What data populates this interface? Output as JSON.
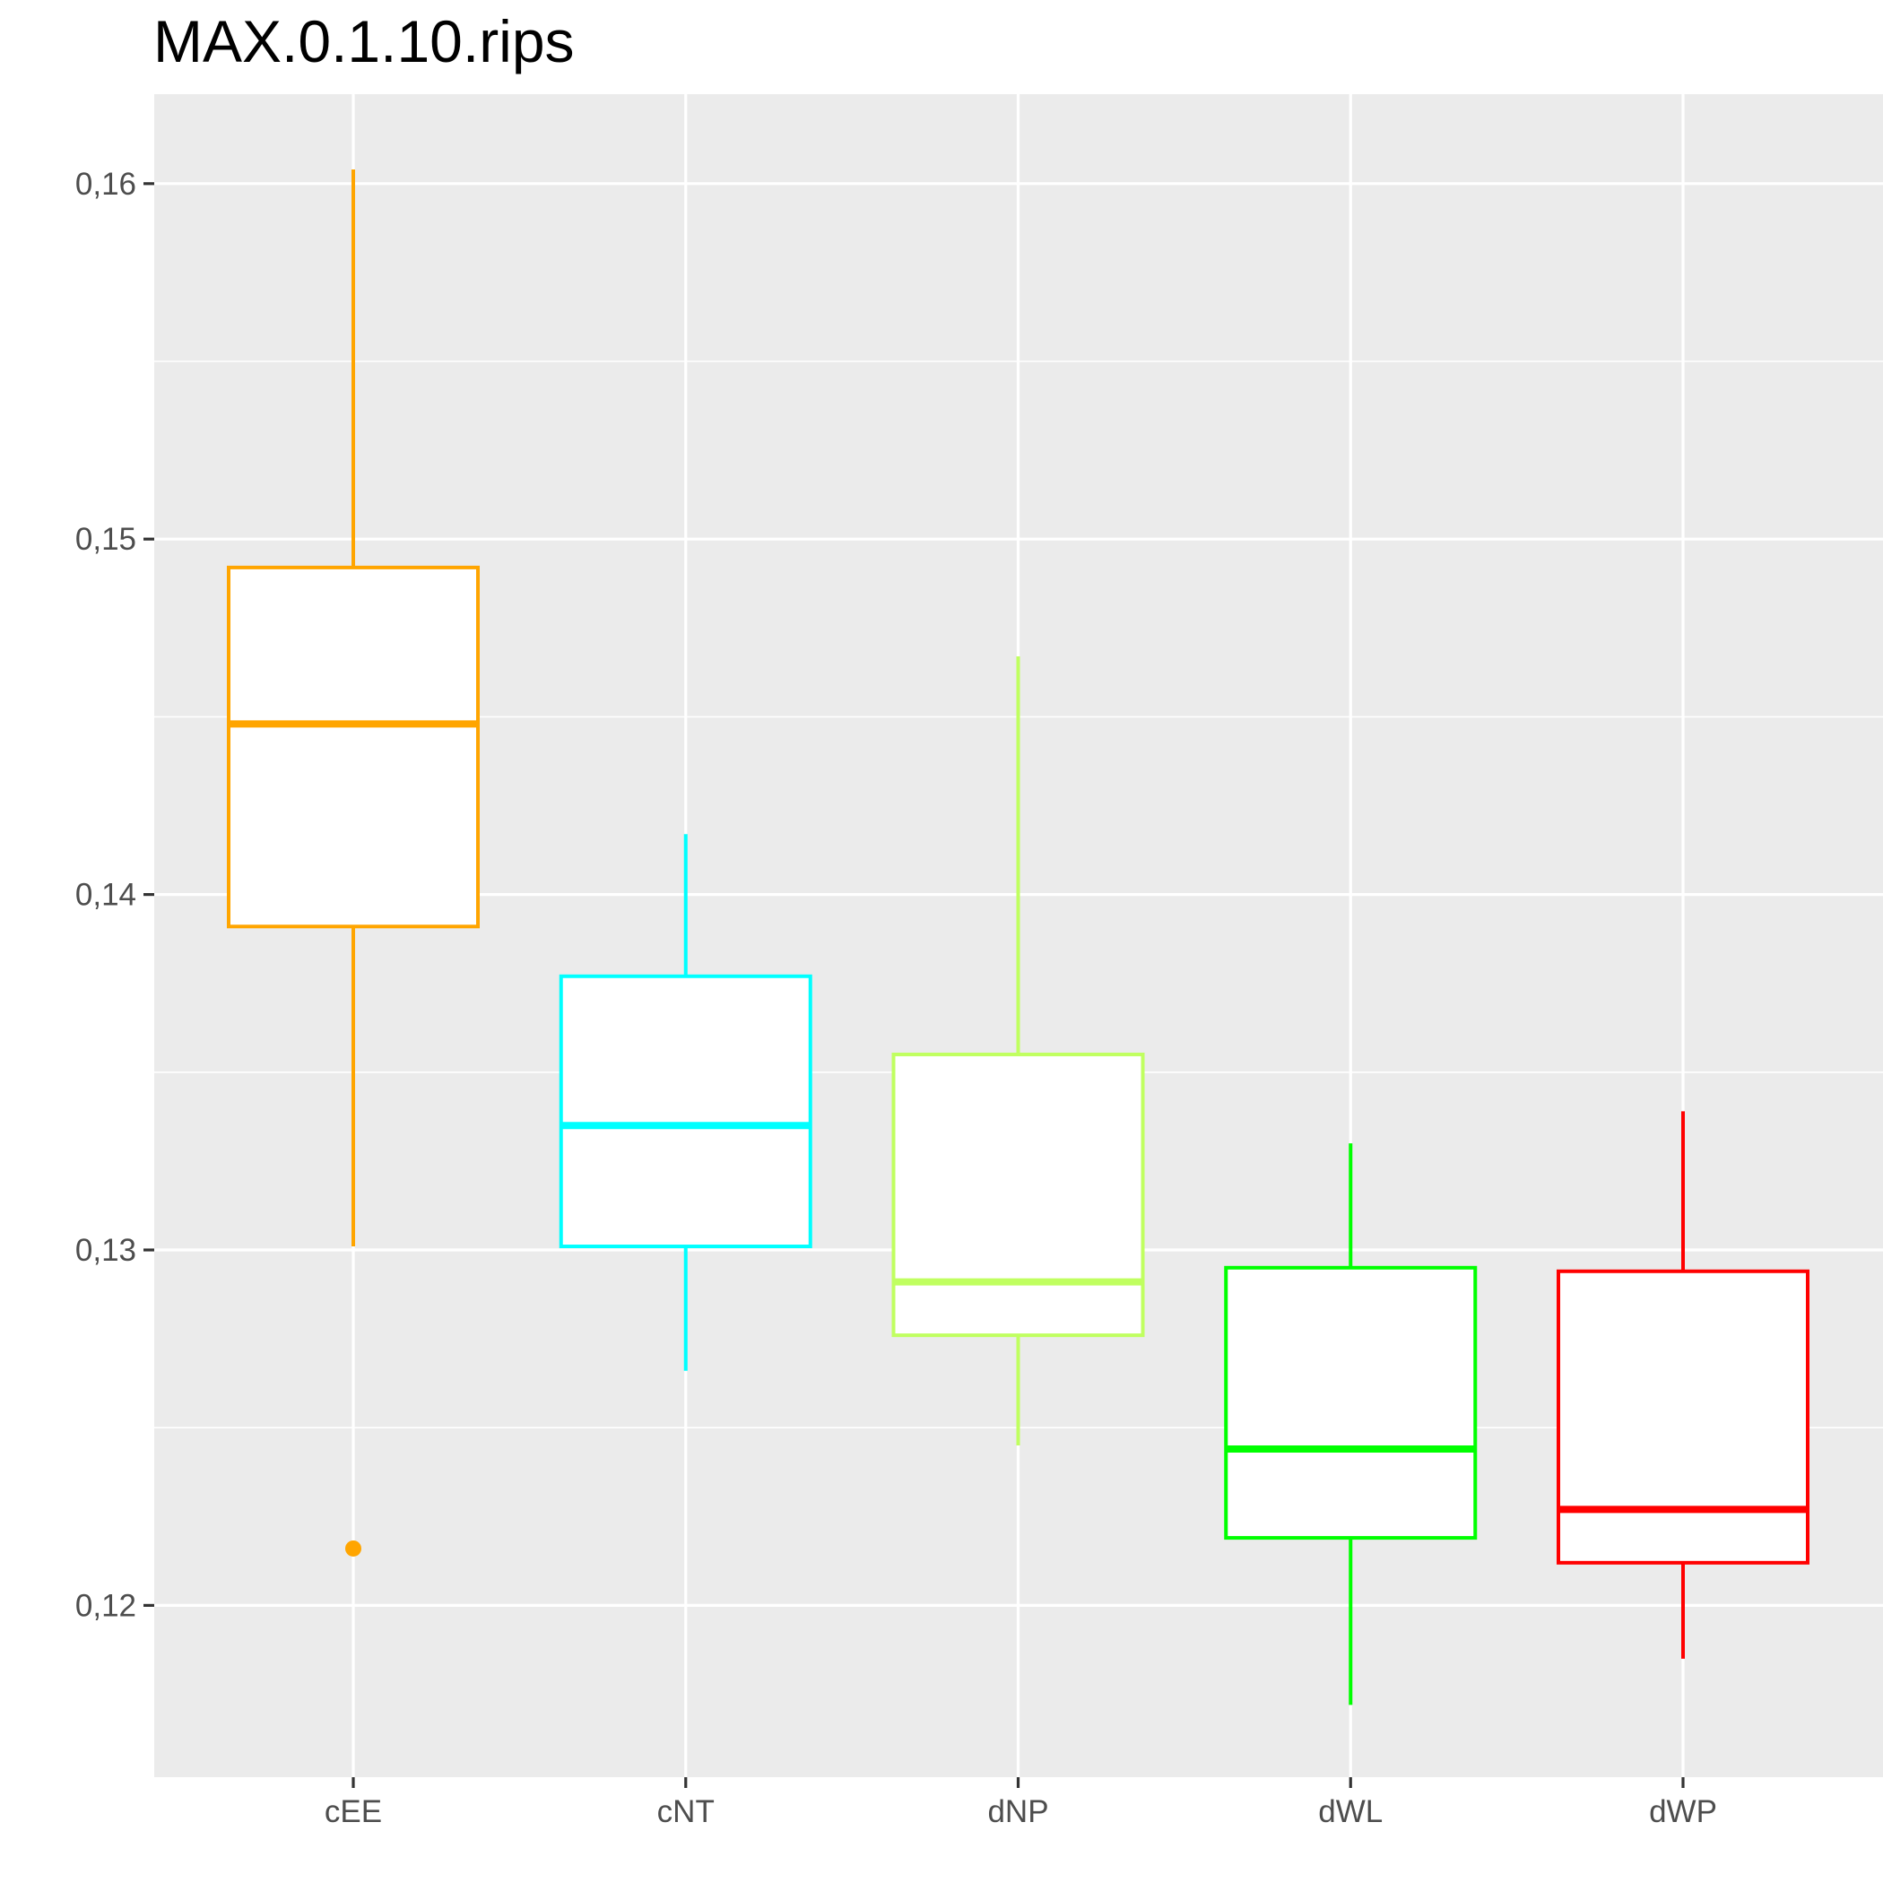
{
  "chart_data": {
    "type": "boxplot",
    "title": "MAX.0.1.10.rips",
    "xlabel": "",
    "ylabel": "",
    "ylim": [
      0.1155,
      0.1625
    ],
    "grid": true,
    "legend": "none",
    "categories": [
      "cEE",
      "cNT",
      "dNP",
      "dWL",
      "dWP"
    ],
    "y_ticks": [
      0.12,
      0.13,
      0.14,
      0.15,
      0.16
    ],
    "y_tick_labels": [
      "0,12",
      "0,13",
      "0,14",
      "0,15",
      "0,16"
    ],
    "boxes": [
      {
        "category": "cEE",
        "color": "#FFA500",
        "min": 0.1301,
        "q1": 0.1391,
        "median": 0.1448,
        "q3": 0.1492,
        "max": 0.1604,
        "outliers": [
          0.1216
        ]
      },
      {
        "category": "cNT",
        "color": "#00FFFF",
        "min": 0.1266,
        "q1": 0.1301,
        "median": 0.1335,
        "q3": 0.1377,
        "max": 0.1417,
        "outliers": []
      },
      {
        "category": "dNP",
        "color": "#C0FF60",
        "min": 0.1245,
        "q1": 0.1276,
        "median": 0.1291,
        "q3": 0.1355,
        "max": 0.1467,
        "outliers": []
      },
      {
        "category": "dWL",
        "color": "#00FF00",
        "min": 0.1172,
        "q1": 0.1219,
        "median": 0.1244,
        "q3": 0.1295,
        "max": 0.133,
        "outliers": []
      },
      {
        "category": "dWP",
        "color": "#FF0000",
        "min": 0.1185,
        "q1": 0.1212,
        "median": 0.1227,
        "q3": 0.1294,
        "max": 0.1339,
        "outliers": []
      }
    ]
  }
}
